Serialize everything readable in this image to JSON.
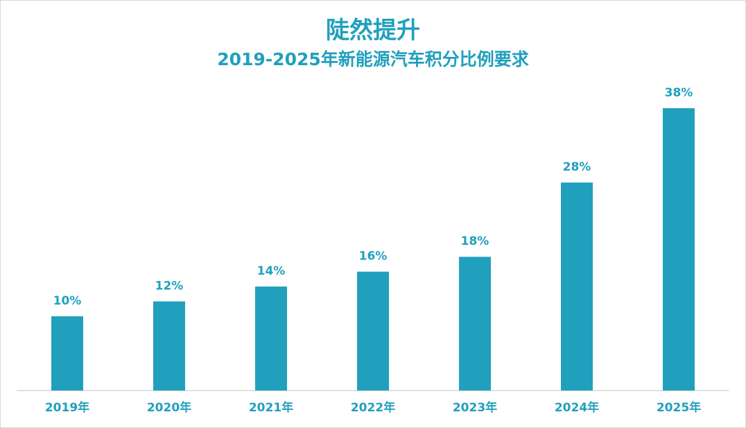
{
  "chart_data": {
    "type": "bar",
    "title": "陡然提升",
    "subtitle": "2019-2025年新能源汽车积分比例要求",
    "categories": [
      "2019年",
      "2020年",
      "2021年",
      "2022年",
      "2023年",
      "2024年",
      "2025年"
    ],
    "values": [
      10,
      12,
      14,
      16,
      18,
      28,
      38
    ],
    "value_labels": [
      "10%",
      "12%",
      "14%",
      "16%",
      "18%",
      "28%",
      "38%"
    ],
    "unit": "%",
    "xlabel": "",
    "ylabel": "",
    "ylim": [
      0,
      38
    ],
    "grid": false,
    "legend": "none",
    "bar_color": "#21a0bd",
    "label_color": "#21a0bd"
  }
}
